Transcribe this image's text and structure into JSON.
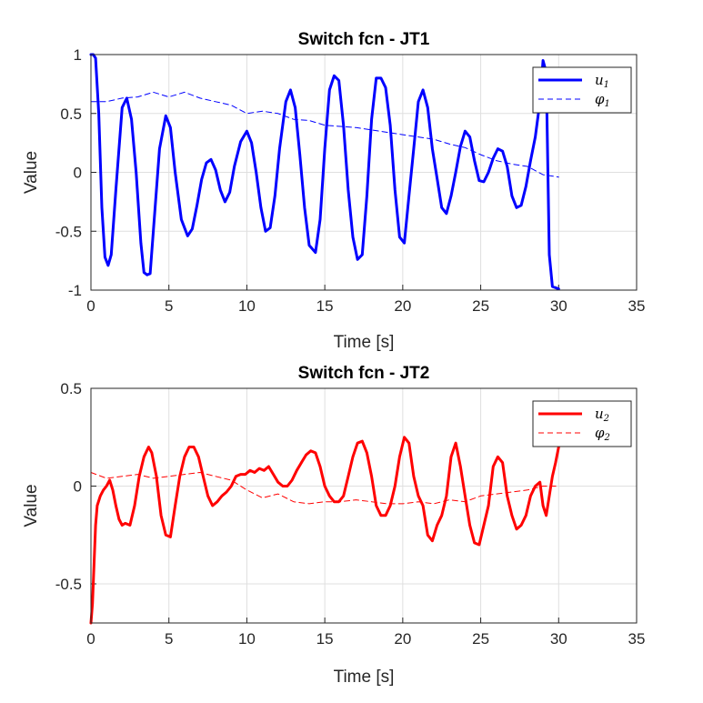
{
  "chart_data": [
    {
      "type": "line",
      "title": "Switch fcn - JT1",
      "xlabel": "Time [s]",
      "ylabel": "Value",
      "xlim": [
        0,
        35
      ],
      "ylim": [
        -1,
        1
      ],
      "xticks": [
        "0",
        "5",
        "10",
        "15",
        "20",
        "25",
        "30",
        "35"
      ],
      "yticks": [
        "1",
        "0.5",
        "0",
        "-0.5",
        "-1"
      ],
      "grid": true,
      "legend_position": "top-right",
      "series": [
        {
          "name": "u",
          "name_sub": "1",
          "color": "#0000ff",
          "style": "solid",
          "x": [
            0,
            0.15,
            0.3,
            0.5,
            0.7,
            0.9,
            1.1,
            1.3,
            1.6,
            2.0,
            2.3,
            2.6,
            2.9,
            3.2,
            3.4,
            3.6,
            3.8,
            4.0,
            4.4,
            4.8,
            5.1,
            5.4,
            5.8,
            6.2,
            6.5,
            6.8,
            7.1,
            7.4,
            7.7,
            8.0,
            8.3,
            8.6,
            8.9,
            9.2,
            9.6,
            10.0,
            10.3,
            10.6,
            10.9,
            11.2,
            11.5,
            11.8,
            12.1,
            12.5,
            12.8,
            13.1,
            13.4,
            13.7,
            14.0,
            14.4,
            14.7,
            15.0,
            15.3,
            15.6,
            15.9,
            16.2,
            16.5,
            16.8,
            17.1,
            17.4,
            17.7,
            18.0,
            18.3,
            18.6,
            18.9,
            19.2,
            19.5,
            19.8,
            20.1,
            20.4,
            20.7,
            21.0,
            21.3,
            21.6,
            21.9,
            22.2,
            22.5,
            22.8,
            23.1,
            23.4,
            23.7,
            24.0,
            24.3,
            24.6,
            24.9,
            25.2,
            25.5,
            25.8,
            26.1,
            26.4,
            26.7,
            27.0,
            27.3,
            27.6,
            27.9,
            28.2,
            28.5,
            28.8,
            29.0,
            29.2,
            29.4,
            29.6,
            29.8,
            30.0
          ],
          "y": [
            1.0,
            1.0,
            0.97,
            0.5,
            -0.3,
            -0.72,
            -0.79,
            -0.7,
            -0.15,
            0.55,
            0.63,
            0.45,
            0.0,
            -0.6,
            -0.85,
            -0.87,
            -0.86,
            -0.5,
            0.2,
            0.48,
            0.38,
            0.0,
            -0.4,
            -0.54,
            -0.48,
            -0.28,
            -0.06,
            0.08,
            0.11,
            0.02,
            -0.15,
            -0.25,
            -0.17,
            0.05,
            0.26,
            0.35,
            0.25,
            0.0,
            -0.3,
            -0.5,
            -0.47,
            -0.2,
            0.2,
            0.6,
            0.7,
            0.55,
            0.15,
            -0.3,
            -0.62,
            -0.68,
            -0.4,
            0.2,
            0.7,
            0.82,
            0.78,
            0.4,
            -0.15,
            -0.55,
            -0.74,
            -0.7,
            -0.2,
            0.45,
            0.8,
            0.8,
            0.72,
            0.4,
            -0.15,
            -0.55,
            -0.6,
            -0.2,
            0.2,
            0.6,
            0.7,
            0.55,
            0.2,
            -0.05,
            -0.3,
            -0.35,
            -0.2,
            0.0,
            0.22,
            0.35,
            0.3,
            0.1,
            -0.07,
            -0.08,
            0.0,
            0.12,
            0.2,
            0.18,
            0.05,
            -0.2,
            -0.3,
            -0.28,
            -0.12,
            0.1,
            0.3,
            0.6,
            0.95,
            0.85,
            -0.7,
            -0.97,
            -0.98,
            -0.99
          ]
        },
        {
          "name": "φ",
          "name_sub": "1",
          "color": "#0000ff",
          "style": "dashed",
          "x": [
            0,
            1,
            2,
            3,
            4,
            5,
            6,
            7,
            8,
            9,
            10,
            11,
            12,
            13,
            14,
            15,
            16,
            17,
            18,
            19,
            20,
            21,
            22,
            23,
            24,
            25,
            26,
            27,
            28,
            29,
            30
          ],
          "y": [
            0.6,
            0.6,
            0.63,
            0.64,
            0.68,
            0.64,
            0.68,
            0.63,
            0.6,
            0.57,
            0.5,
            0.52,
            0.5,
            0.45,
            0.44,
            0.4,
            0.39,
            0.38,
            0.36,
            0.34,
            0.32,
            0.3,
            0.28,
            0.24,
            0.21,
            0.15,
            0.1,
            0.07,
            0.05,
            -0.02,
            -0.04
          ]
        }
      ]
    },
    {
      "type": "line",
      "title": "Switch fcn - JT2",
      "xlabel": "Time [s]",
      "ylabel": "Value",
      "xlim": [
        0,
        35
      ],
      "ylim": [
        -0.7,
        0.5
      ],
      "xticks": [
        "0",
        "5",
        "10",
        "15",
        "20",
        "25",
        "30",
        "35"
      ],
      "yticks": [
        "0.5",
        "0",
        "-0.5"
      ],
      "grid": true,
      "legend_position": "top-right",
      "series": [
        {
          "name": "u",
          "name_sub": "2",
          "color": "#ff0000",
          "style": "solid",
          "x": [
            0,
            0.1,
            0.2,
            0.3,
            0.4,
            0.6,
            0.8,
            1.0,
            1.2,
            1.4,
            1.6,
            1.8,
            2.0,
            2.2,
            2.5,
            2.8,
            3.1,
            3.4,
            3.7,
            3.9,
            4.2,
            4.5,
            4.8,
            5.1,
            5.4,
            5.7,
            6.0,
            6.3,
            6.6,
            6.9,
            7.2,
            7.5,
            7.8,
            8.1,
            8.4,
            8.7,
            9.0,
            9.3,
            9.6,
            9.9,
            10.2,
            10.5,
            10.8,
            11.1,
            11.4,
            11.7,
            12.0,
            12.3,
            12.6,
            12.9,
            13.2,
            13.5,
            13.8,
            14.1,
            14.4,
            14.7,
            15.0,
            15.3,
            15.6,
            15.9,
            16.2,
            16.5,
            16.8,
            17.1,
            17.4,
            17.7,
            18.0,
            18.3,
            18.6,
            18.9,
            19.2,
            19.5,
            19.8,
            20.1,
            20.4,
            20.7,
            21.0,
            21.3,
            21.6,
            21.9,
            22.2,
            22.5,
            22.8,
            23.1,
            23.4,
            23.7,
            24.0,
            24.3,
            24.6,
            24.9,
            25.2,
            25.5,
            25.8,
            26.1,
            26.4,
            26.7,
            27.0,
            27.3,
            27.6,
            27.9,
            28.2,
            28.5,
            28.8,
            29.0,
            29.2,
            29.4,
            29.6,
            29.8,
            30.0
          ],
          "y": [
            -0.7,
            -0.6,
            -0.4,
            -0.2,
            -0.1,
            -0.05,
            -0.02,
            0.0,
            0.03,
            -0.02,
            -0.1,
            -0.17,
            -0.2,
            -0.19,
            -0.2,
            -0.1,
            0.05,
            0.15,
            0.2,
            0.17,
            0.05,
            -0.15,
            -0.25,
            -0.26,
            -0.1,
            0.05,
            0.15,
            0.2,
            0.2,
            0.15,
            0.05,
            -0.05,
            -0.1,
            -0.08,
            -0.05,
            -0.03,
            0.0,
            0.05,
            0.06,
            0.06,
            0.08,
            0.07,
            0.09,
            0.08,
            0.1,
            0.06,
            0.02,
            0.0,
            0.0,
            0.03,
            0.08,
            0.12,
            0.16,
            0.18,
            0.17,
            0.1,
            0.0,
            -0.05,
            -0.08,
            -0.08,
            -0.05,
            0.05,
            0.15,
            0.22,
            0.23,
            0.17,
            0.05,
            -0.1,
            -0.15,
            -0.15,
            -0.1,
            0.0,
            0.15,
            0.25,
            0.22,
            0.05,
            -0.05,
            -0.1,
            -0.25,
            -0.28,
            -0.2,
            -0.15,
            -0.05,
            0.15,
            0.22,
            0.1,
            -0.05,
            -0.2,
            -0.29,
            -0.3,
            -0.2,
            -0.1,
            0.1,
            0.15,
            0.12,
            -0.05,
            -0.15,
            -0.22,
            -0.2,
            -0.15,
            -0.05,
            0.0,
            0.02,
            -0.1,
            -0.15,
            -0.05,
            0.05,
            0.12,
            0.2
          ]
        },
        {
          "name": "φ",
          "name_sub": "2",
          "color": "#ff0000",
          "style": "dashed",
          "x": [
            0,
            1,
            2,
            3,
            4,
            5,
            6,
            7,
            8,
            9,
            10,
            11,
            12,
            13,
            14,
            15,
            16,
            17,
            18,
            19,
            20,
            21,
            22,
            23,
            24,
            25,
            26,
            27,
            28,
            29,
            30
          ],
          "y": [
            0.07,
            0.04,
            0.05,
            0.06,
            0.04,
            0.05,
            0.06,
            0.07,
            0.05,
            0.03,
            -0.02,
            -0.06,
            -0.04,
            -0.08,
            -0.09,
            -0.08,
            -0.08,
            -0.07,
            -0.08,
            -0.09,
            -0.09,
            -0.08,
            -0.09,
            -0.07,
            -0.08,
            -0.05,
            -0.04,
            -0.03,
            -0.02,
            0.0,
            0.0
          ]
        }
      ]
    }
  ]
}
